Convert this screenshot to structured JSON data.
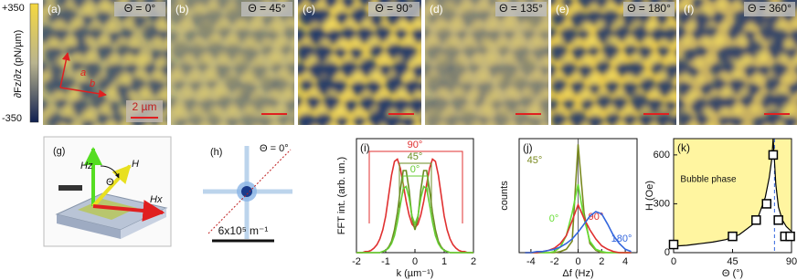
{
  "colorbar": {
    "max_label": "+350",
    "min_label": "-350",
    "label": "∂Fz/∂z (pN/µm)"
  },
  "panels": [
    {
      "label": "(a)",
      "title": "Θ = 0°"
    },
    {
      "label": "(b)",
      "title": "Θ = 45°"
    },
    {
      "label": "(c)",
      "title": "Θ = 90°"
    },
    {
      "label": "(d)",
      "title": "Θ = 135°"
    },
    {
      "label": "(e)",
      "title": "Θ = 180°"
    },
    {
      "label": "(f)",
      "title": "Θ = 360°"
    }
  ],
  "panel_a": {
    "scale_bar": "2 µm",
    "axis_a": "a",
    "axis_b": "b"
  },
  "panel_g": {
    "label": "(g)",
    "hz": "Hz",
    "h": "H",
    "theta": "Θ",
    "hx": "Hx"
  },
  "panel_h": {
    "label": "(h)",
    "title": "Θ = 0°",
    "scale_bar": "6x10⁵ m⁻¹"
  },
  "chart_data": [
    {
      "type": "line",
      "label": "(i)",
      "xlabel": "k (µm⁻¹)",
      "ylabel": "FFT int. (arb. un.)",
      "x": [
        -2,
        -1.9,
        -1.8,
        -1.7,
        -1.6,
        -1.5,
        -1.4,
        -1.3,
        -1.2,
        -1.1,
        -1,
        -0.9,
        -0.8,
        -0.7,
        -0.6,
        -0.5,
        -0.4,
        -0.3,
        -0.2,
        -0.1,
        0,
        0.1,
        0.2,
        0.3,
        0.4,
        0.5,
        0.6,
        0.7,
        0.8,
        0.9,
        1,
        1.1,
        1.2,
        1.3,
        1.4,
        1.5,
        1.6,
        1.7,
        1.8,
        1.9,
        2
      ],
      "xlim": [
        -2,
        2
      ],
      "xticks": [
        -2,
        -1,
        0,
        1,
        2
      ],
      "ylim": [
        0,
        1
      ],
      "series": [
        {
          "name": "90°",
          "color": "#e03030",
          "values": [
            0,
            0,
            0,
            0.01,
            0.01,
            0.02,
            0.04,
            0.07,
            0.12,
            0.2,
            0.32,
            0.5,
            0.68,
            0.8,
            0.82,
            0.74,
            0.6,
            0.45,
            0.33,
            0.25,
            0.22,
            0.25,
            0.33,
            0.45,
            0.6,
            0.74,
            0.82,
            0.8,
            0.68,
            0.5,
            0.32,
            0.2,
            0.12,
            0.07,
            0.04,
            0.02,
            0.01,
            0.01,
            0,
            0,
            0
          ]
        },
        {
          "name": "45°",
          "color": "#6b8e23",
          "values": [
            0,
            0,
            0,
            0,
            0,
            0,
            0,
            0,
            0,
            0.01,
            0.02,
            0.05,
            0.1,
            0.2,
            0.35,
            0.55,
            0.72,
            0.72,
            0.55,
            0.3,
            0.2,
            0.3,
            0.55,
            0.72,
            0.72,
            0.55,
            0.35,
            0.2,
            0.1,
            0.05,
            0.02,
            0.01,
            0,
            0,
            0,
            0,
            0,
            0,
            0,
            0,
            0
          ]
        },
        {
          "name": "0°",
          "color": "#66cc33",
          "values": [
            0,
            0,
            0,
            0,
            0,
            0,
            0,
            0,
            0,
            0.01,
            0.02,
            0.04,
            0.08,
            0.15,
            0.27,
            0.42,
            0.56,
            0.58,
            0.48,
            0.32,
            0.25,
            0.32,
            0.48,
            0.58,
            0.56,
            0.42,
            0.27,
            0.15,
            0.08,
            0.04,
            0.02,
            0.01,
            0,
            0,
            0,
            0,
            0,
            0,
            0,
            0,
            0
          ]
        }
      ]
    },
    {
      "type": "line",
      "label": "(j)",
      "xlabel": "Δf (Hz)",
      "ylabel": "counts",
      "x": [
        -4.5,
        -4,
        -3.5,
        -3,
        -2.5,
        -2,
        -1.5,
        -1,
        -0.5,
        0,
        0.5,
        1,
        1.5,
        2,
        2.5,
        3,
        3.5,
        4,
        4.5
      ],
      "xlim": [
        -5,
        5
      ],
      "xticks": [
        -4,
        -2,
        0,
        2,
        4
      ],
      "ylim": [
        0,
        1
      ],
      "vline": 0,
      "series": [
        {
          "name": "45°",
          "color": "#7a8a20",
          "values": [
            0,
            0,
            0,
            0,
            0,
            0,
            0.01,
            0.03,
            0.1,
            0.95,
            0.35,
            0.08,
            0.02,
            0,
            0,
            0,
            0,
            0,
            0
          ]
        },
        {
          "name": "0°",
          "color": "#66dd33",
          "values": [
            0,
            0,
            0,
            0,
            0,
            0.01,
            0.05,
            0.15,
            0.35,
            0.6,
            0.3,
            0.1,
            0.03,
            0.01,
            0,
            0,
            0,
            0,
            0
          ]
        },
        {
          "name": "90°",
          "color": "#e03030",
          "values": [
            0,
            0,
            0,
            0.01,
            0.02,
            0.04,
            0.08,
            0.15,
            0.28,
            0.42,
            0.3,
            0.2,
            0.12,
            0.06,
            0.03,
            0.01,
            0,
            0,
            0
          ]
        },
        {
          "name": "180°",
          "color": "#3366dd",
          "values": [
            0,
            0,
            0.01,
            0.01,
            0.02,
            0.03,
            0.05,
            0.08,
            0.12,
            0.18,
            0.25,
            0.32,
            0.36,
            0.34,
            0.25,
            0.15,
            0.08,
            0.03,
            0.01
          ]
        }
      ]
    },
    {
      "type": "scatter",
      "label": "(k)",
      "xlabel": "Θ (°)",
      "ylabel": "H (Oe)",
      "annotation": "Bubble phase",
      "xlim": [
        0,
        90
      ],
      "xticks": [
        0,
        45,
        90
      ],
      "ylim": [
        0,
        700
      ],
      "yticks": [
        0,
        300,
        600
      ],
      "vline": 77,
      "fill": "#fff5a0",
      "series": [
        {
          "color": "#000000",
          "x": [
            0,
            45,
            63,
            71,
            76,
            80,
            85,
            89
          ],
          "values": [
            50,
            100,
            200,
            300,
            600,
            200,
            100,
            100
          ]
        },
        {
          "color": "#000000",
          "x": [
            0,
            10,
            20,
            30,
            40,
            50,
            60,
            65,
            70,
            73,
            75,
            76,
            77,
            78,
            80,
            83,
            86,
            90
          ],
          "values": [
            40,
            45,
            55,
            65,
            80,
            110,
            170,
            230,
            340,
            460,
            580,
            700,
            560,
            420,
            280,
            200,
            160,
            130
          ]
        }
      ]
    }
  ]
}
